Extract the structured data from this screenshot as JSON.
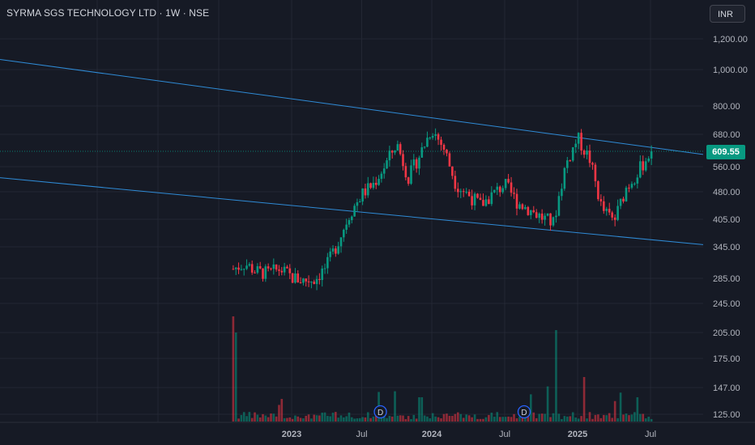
{
  "header": {
    "title": "SYRMA SGS TECHNOLOGY LTD · 1W · NSE",
    "currency": "INR"
  },
  "colors": {
    "background": "#161a25",
    "grid": "#232733",
    "axis_text": "#b2b5be",
    "up": "#089981",
    "down": "#f23645",
    "trendline": "#2f8bd6",
    "last_price": "#089981"
  },
  "chart_data": {
    "type": "candlestick",
    "title": "",
    "scale": "log",
    "grid": true,
    "ylabel": "",
    "xlabel": "",
    "y_ticks": [
      1200,
      1000,
      800,
      680,
      560,
      480,
      405,
      345,
      285,
      245,
      205,
      175,
      147,
      125
    ],
    "x_ticks": [
      "2023",
      "Jul",
      "2024",
      "Jul",
      "2025",
      "Jul"
    ],
    "last_price": "609.55",
    "last_price_value": 609.55,
    "event_markers": [
      {
        "label": "D",
        "date": "2023-08"
      },
      {
        "label": "D",
        "date": "2024-08"
      }
    ],
    "trendlines": [
      {
        "name": "upper-channel",
        "start": {
          "date": "2020-12",
          "price": 1060
        },
        "end": {
          "date": "2025-11",
          "price": 600
        }
      },
      {
        "name": "lower-channel",
        "start": {
          "date": "2020-12",
          "price": 520
        },
        "end": {
          "date": "2025-11",
          "price": 348
        }
      }
    ],
    "price_path": [
      {
        "date": "2022-08",
        "close": 300
      },
      {
        "date": "2022-09",
        "close": 310
      },
      {
        "date": "2022-10",
        "close": 295
      },
      {
        "date": "2022-11",
        "close": 292
      },
      {
        "date": "2022-12",
        "close": 300
      },
      {
        "date": "2023-01",
        "close": 285
      },
      {
        "date": "2023-02",
        "close": 280
      },
      {
        "date": "2023-03",
        "close": 282
      },
      {
        "date": "2023-04",
        "close": 305
      },
      {
        "date": "2023-05",
        "close": 355
      },
      {
        "date": "2023-06",
        "close": 420
      },
      {
        "date": "2023-07",
        "close": 470
      },
      {
        "date": "2023-08",
        "close": 500
      },
      {
        "date": "2023-09",
        "close": 560
      },
      {
        "date": "2023-10",
        "close": 640
      },
      {
        "date": "2023-11",
        "close": 520
      },
      {
        "date": "2023-12",
        "close": 600
      },
      {
        "date": "2024-01",
        "close": 700
      },
      {
        "date": "2024-02",
        "close": 620
      },
      {
        "date": "2024-03",
        "close": 500
      },
      {
        "date": "2024-04",
        "close": 470
      },
      {
        "date": "2024-05",
        "close": 440
      },
      {
        "date": "2024-06",
        "close": 470
      },
      {
        "date": "2024-07",
        "close": 500
      },
      {
        "date": "2024-08",
        "close": 450
      },
      {
        "date": "2024-09",
        "close": 430
      },
      {
        "date": "2024-10",
        "close": 410
      },
      {
        "date": "2024-11",
        "close": 395
      },
      {
        "date": "2024-12",
        "close": 560
      },
      {
        "date": "2025-01",
        "close": 660
      },
      {
        "date": "2025-02",
        "close": 580
      },
      {
        "date": "2025-03",
        "close": 430
      },
      {
        "date": "2025-04",
        "close": 400
      },
      {
        "date": "2025-05",
        "close": 490
      },
      {
        "date": "2025-06",
        "close": 540
      },
      {
        "date": "2025-07",
        "close": 609.55
      }
    ]
  }
}
